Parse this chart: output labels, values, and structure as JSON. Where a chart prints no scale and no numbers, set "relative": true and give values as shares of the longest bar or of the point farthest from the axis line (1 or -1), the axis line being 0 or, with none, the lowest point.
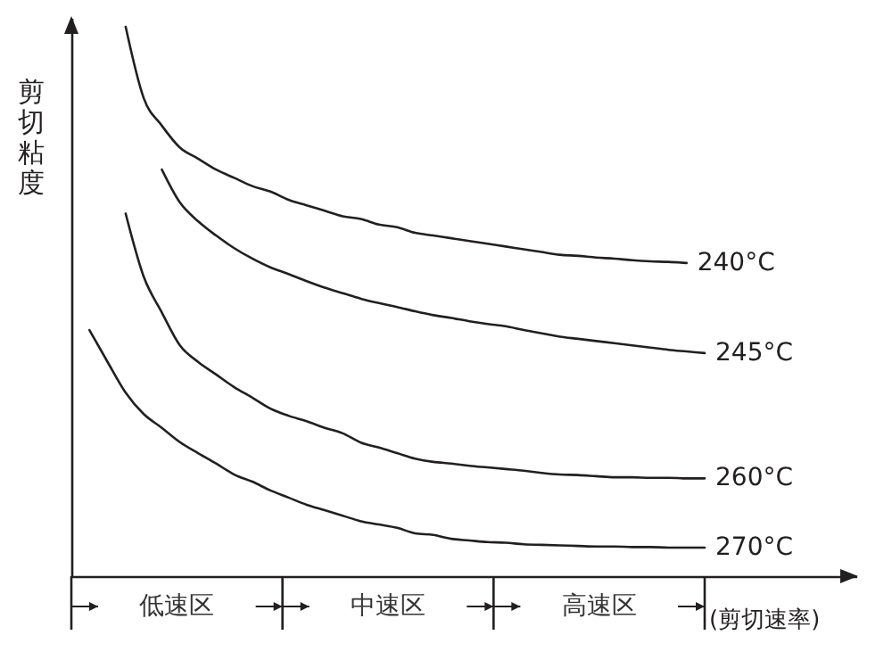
{
  "chart_data": {
    "type": "line",
    "relative": true,
    "xlabel": "(剪切速率)",
    "ylabel": "剪切粘度",
    "grid": false,
    "marker": "none",
    "line_style": "solid",
    "categories": [
      null,
      null,
      null,
      null,
      null,
      null,
      null,
      null,
      null,
      null,
      null,
      null,
      null,
      null,
      null,
      null,
      null,
      null,
      null,
      null,
      null,
      null,
      null,
      null,
      null,
      null,
      null,
      null,
      null,
      null,
      null,
      null,
      null,
      null,
      null,
      null
    ],
    "series": [
      {
        "name": "240°C",
        "color": "#231f20",
        "values": [
          null,
          null,
          null,
          1.0,
          0.87,
          0.82,
          0.78,
          0.76,
          0.74,
          0.725,
          0.71,
          0.7,
          0.685,
          0.675,
          0.665,
          0.655,
          0.65,
          0.64,
          0.635,
          0.625,
          0.62,
          0.615,
          0.61,
          0.605,
          0.6,
          0.595,
          0.59,
          0.585,
          0.583,
          0.58,
          0.578,
          0.575,
          0.573,
          0.572,
          0.57,
          null
        ]
      },
      {
        "name": "245°C",
        "color": "#231f20",
        "values": [
          null,
          null,
          null,
          null,
          null,
          0.74,
          0.68,
          0.646,
          0.62,
          0.597,
          0.578,
          0.562,
          0.55,
          0.537,
          0.525,
          0.515,
          0.505,
          0.497,
          0.49,
          0.482,
          0.475,
          0.47,
          0.464,
          0.459,
          0.455,
          0.448,
          0.442,
          0.436,
          0.432,
          0.428,
          0.424,
          0.42,
          0.416,
          0.412,
          0.409,
          0.406
        ]
      },
      {
        "name": "260°C",
        "color": "#231f20",
        "values": [
          null,
          null,
          null,
          0.66,
          0.545,
          0.48,
          0.42,
          0.39,
          0.367,
          0.344,
          0.325,
          0.305,
          0.292,
          0.282,
          0.27,
          0.26,
          0.243,
          0.234,
          0.224,
          0.214,
          0.208,
          0.205,
          0.201,
          0.198,
          0.195,
          0.192,
          0.188,
          0.185,
          0.184,
          0.182,
          0.18,
          0.18,
          0.179,
          0.179,
          0.178,
          0.178
        ]
      },
      {
        "name": "270°C",
        "color": "#231f20",
        "values": [
          null,
          0.448,
          0.39,
          0.334,
          0.295,
          0.27,
          0.244,
          0.224,
          0.205,
          0.185,
          0.172,
          0.156,
          0.143,
          0.13,
          0.12,
          0.11,
          0.1,
          0.094,
          0.088,
          0.078,
          0.075,
          0.068,
          0.065,
          0.062,
          0.061,
          0.058,
          0.057,
          0.056,
          0.055,
          0.054,
          0.054,
          0.053,
          0.053,
          0.052,
          0.052,
          0.052
        ]
      }
    ],
    "annotations": [
      "低速区",
      "中速区",
      "高速区"
    ]
  }
}
